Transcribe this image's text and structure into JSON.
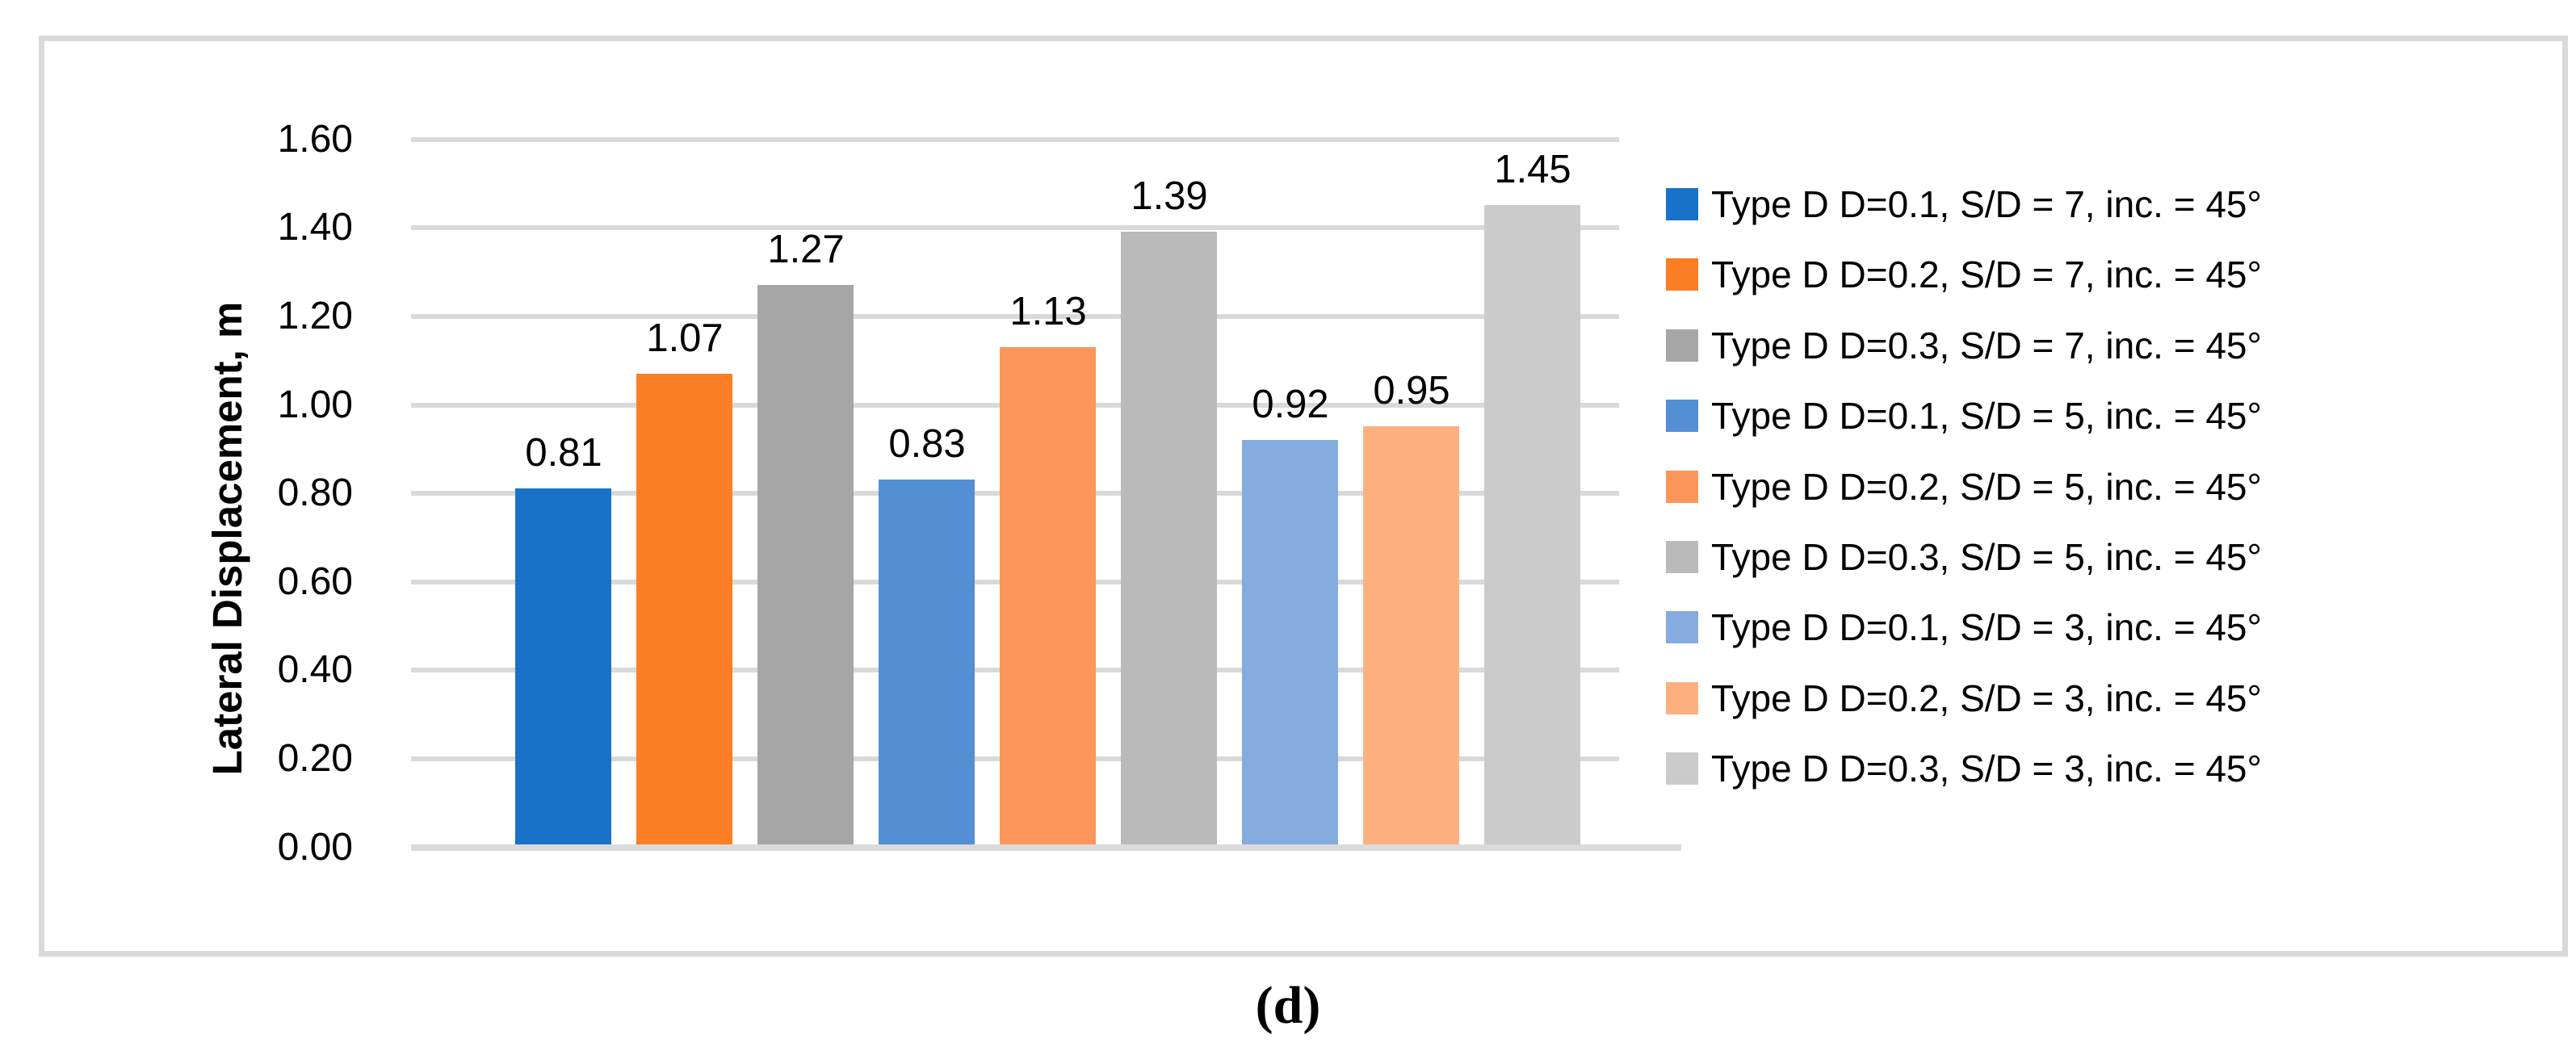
{
  "figure": {
    "caption": "(d)",
    "panel_border_color": "#D9D9D9"
  },
  "chart_data": {
    "type": "bar",
    "title": "",
    "xlabel": "",
    "ylabel": "Lateral Displacement, m",
    "ylim": [
      0.0,
      1.6
    ],
    "ytick_step": 0.2,
    "yticks": [
      "0.00",
      "0.20",
      "0.40",
      "0.60",
      "0.80",
      "1.00",
      "1.20",
      "1.40",
      "1.60"
    ],
    "grid": true,
    "gridline_color": "#D9D9D9",
    "axis_line_color": "#DBDBDB",
    "legend_position": "right",
    "data_labels_shown": true,
    "series": [
      {
        "name": "Type D D=0.1, S/D = 7, inc. = 45°",
        "value": 0.81,
        "data_label": "0.81",
        "color": "#1772C8"
      },
      {
        "name": "Type D D=0.2, S/D = 7, inc. = 45°",
        "value": 1.07,
        "data_label": "1.07",
        "color": "#FB7D26"
      },
      {
        "name": "Type D D=0.3, S/D = 7, inc. = 45°",
        "value": 1.27,
        "data_label": "1.27",
        "color": "#A6A6A6"
      },
      {
        "name": "Type D D=0.1, S/D = 5, inc. = 45°",
        "value": 0.83,
        "data_label": "0.83",
        "color": "#548FD4"
      },
      {
        "name": "Type D D=0.2, S/D = 5, inc. = 45°",
        "value": 1.13,
        "data_label": "1.13",
        "color": "#FC965A"
      },
      {
        "name": "Type D D=0.3, S/D = 5, inc. = 45°",
        "value": 1.39,
        "data_label": "1.39",
        "color": "#BABABA"
      },
      {
        "name": "Type D D=0.1, S/D = 3, inc. = 45°",
        "value": 0.92,
        "data_label": "0.92",
        "color": "#84ACDF"
      },
      {
        "name": "Type D D=0.2, S/D = 3, inc. = 45°",
        "value": 0.95,
        "data_label": "0.95",
        "color": "#FDB07F"
      },
      {
        "name": "Type D D=0.3, S/D = 3, inc. = 45°",
        "value": 1.45,
        "data_label": "1.45",
        "color": "#CBCBCB"
      }
    ]
  }
}
